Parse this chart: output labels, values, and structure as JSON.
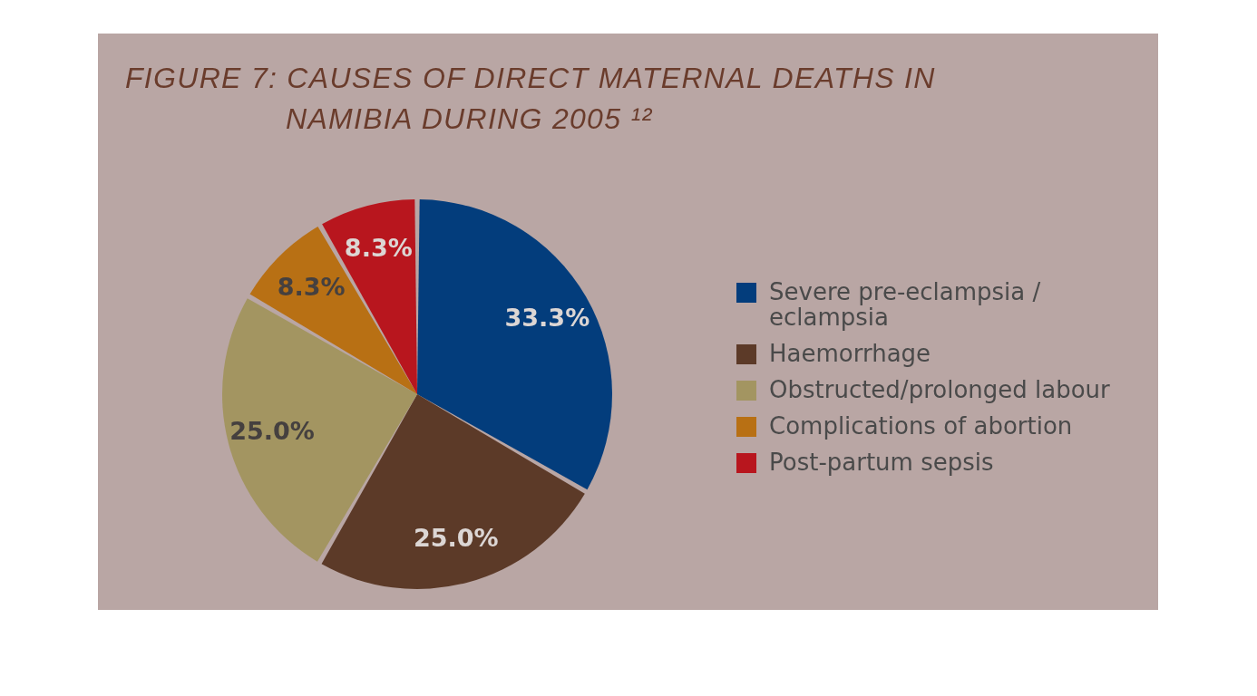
{
  "chart_data": {
    "type": "pie",
    "title": "FIGURE 7: CAUSES OF DIRECT MATERNAL DEATHS IN NAMIBIA DURING 2005 ¹²",
    "categories": [
      "Severe pre-eclampsia / eclampsia",
      "Haemorrhage",
      "Obstructed/prolonged labour",
      "Complications of abortion",
      "Post-partum sepsis"
    ],
    "values": [
      33.3,
      25.0,
      25.0,
      8.3,
      8.3
    ],
    "colors": [
      "#033d7c",
      "#5c3a28",
      "#a39561",
      "#b87014",
      "#b8161e"
    ],
    "value_labels": [
      "33.3%",
      "25.0%",
      "25.0%",
      "8.3%",
      "8.3%"
    ],
    "legend": "right"
  }
}
